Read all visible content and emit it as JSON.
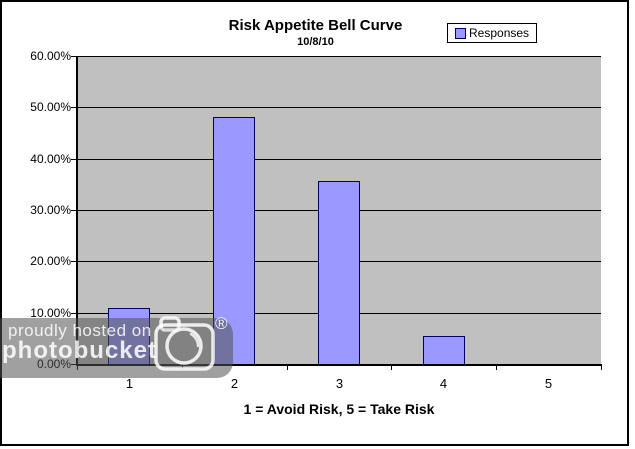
{
  "chart_data": {
    "type": "bar",
    "title": "Risk Appetite Bell Curve",
    "subtitle": "10/8/10",
    "categories": [
      "1",
      "2",
      "3",
      "4",
      "5"
    ],
    "series": [
      {
        "name": "Responses",
        "values": [
          11.1,
          48.4,
          35.8,
          5.6,
          0
        ]
      }
    ],
    "xlabel": "1 = Avoid Risk, 5 = Take Risk",
    "ylabel": "",
    "ylim": [
      0,
      60
    ],
    "ytick_step": 10,
    "ytick_labels": [
      "0.00%",
      "10.00%",
      "20.00%",
      "30.00%",
      "40.00%",
      "50.00%",
      "60.00%"
    ],
    "grid": true,
    "legend_position": "top-right",
    "colors": {
      "bar_fill": "#9999FF",
      "bar_border": "#000066",
      "plot_bg": "#C0C0C0",
      "gridline": "#000000",
      "chart_bg": "#FFFFFF",
      "axis": "#000000"
    }
  },
  "legend": {
    "label": "Responses"
  },
  "watermark": {
    "line1": "proudly hosted on",
    "line2": "photobucket",
    "registered": "®"
  }
}
